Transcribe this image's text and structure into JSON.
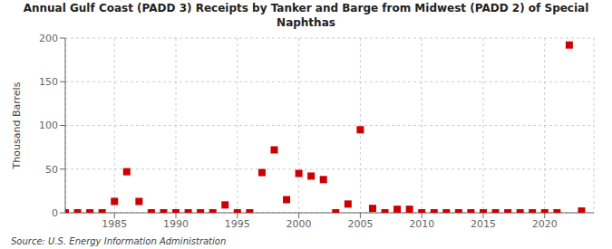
{
  "chart_data": {
    "type": "scatter",
    "title": "Annual Gulf Coast (PADD 3) Receipts by Tanker and Barge from Midwest (PADD 2) of Special\nNaphthas",
    "ylabel": "Thousand Barrels",
    "annotations": [
      "Source: U.S. Energy Information Administration"
    ],
    "x": [
      1981,
      1982,
      1983,
      1984,
      1985,
      1986,
      1987,
      1988,
      1989,
      1990,
      1991,
      1992,
      1993,
      1994,
      1995,
      1996,
      1997,
      1998,
      1999,
      2000,
      2001,
      2002,
      2003,
      2004,
      2005,
      2006,
      2007,
      2008,
      2009,
      2010,
      2011,
      2012,
      2013,
      2014,
      2015,
      2016,
      2017,
      2018,
      2019,
      2020,
      2021,
      2022,
      2023
    ],
    "values": [
      0,
      0,
      0,
      0,
      13,
      47,
      13,
      0,
      0,
      0,
      0,
      0,
      0,
      9,
      0,
      0,
      46,
      72,
      15,
      45,
      42,
      38,
      0,
      10,
      95,
      5,
      0,
      4,
      4,
      0,
      0,
      0,
      0,
      0,
      0,
      0,
      0,
      0,
      0,
      0,
      0,
      192,
      2
    ],
    "color": "#cc0000",
    "marker": "square",
    "xlim": [
      1981,
      2024
    ],
    "ylim": [
      0,
      200
    ],
    "xticks": [
      1985,
      1990,
      1995,
      2000,
      2005,
      2010,
      2015,
      2020
    ],
    "yticks": [
      0,
      50,
      100,
      150,
      200
    ],
    "grid": true
  }
}
